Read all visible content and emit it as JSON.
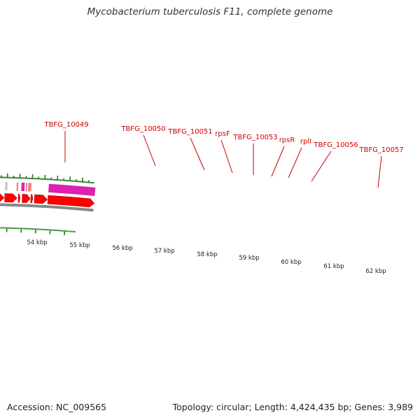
{
  "title": "Mycobacterium tuberculosis F11, complete genome",
  "accession": "Accession: NC_009565",
  "summary": "Topology: circular; Length: 4,424,435 bp; Genes: 3,989",
  "colors": {
    "cds_track": "#ff0000",
    "cds_border": "#aa0000",
    "label_text": "#cc0000",
    "ticks": "#1a7a1a",
    "backbone": "#888888"
  },
  "gene_labels": [
    "TBFG_10049",
    "TBFG_10050",
    "TBFG_10051",
    "rpsF",
    "TBFG_10053",
    "rpsR",
    "rplI",
    "TBFG_10056",
    "TBFG_10057"
  ],
  "function_blocks": [
    {
      "color": "#6e8f2c",
      "name": "olive"
    },
    {
      "color": "#606060",
      "name": "dark-gray"
    },
    {
      "color": "#c0c0c0",
      "name": "light-gray"
    },
    {
      "color": "#f08080",
      "name": "salmon"
    },
    {
      "color": "#e020b0",
      "name": "magenta"
    },
    {
      "color": "#f08080",
      "name": "salmon"
    },
    {
      "color": "#f08080",
      "name": "salmon"
    },
    {
      "color": "#e020b0",
      "name": "magenta"
    }
  ],
  "cds_arrows": [
    "cds-1",
    "cds-2",
    "cds-3",
    "cds-4",
    "cds-5",
    "cds-6",
    "cds-7",
    "cds-8",
    "cds-9"
  ],
  "scale_labels": [
    "54 kbp",
    "55 kbp",
    "56 kbp",
    "57 kbp",
    "58 kbp",
    "59 kbp",
    "60 kbp",
    "61 kbp",
    "62 kbp"
  ]
}
